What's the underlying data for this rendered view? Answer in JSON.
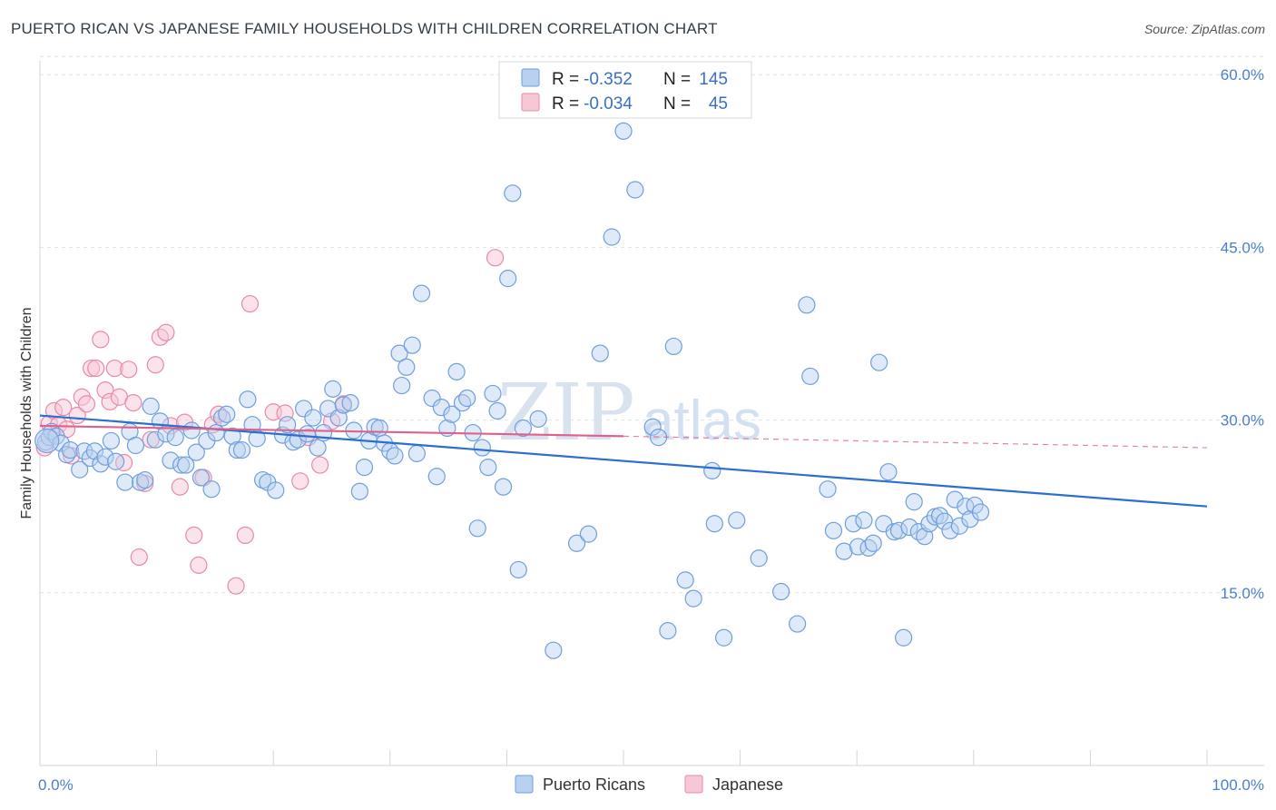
{
  "title": "PUERTO RICAN VS JAPANESE FAMILY HOUSEHOLDS WITH CHILDREN CORRELATION CHART",
  "source": "Source: ZipAtlas.com",
  "watermark": {
    "zip": "ZIP",
    "atlas": "atlas"
  },
  "colors": {
    "blue": "#6f9fdc",
    "blue_fill": "#b9d1f0",
    "blue_line": "#2b6fd1",
    "pink": "#e88aa8",
    "pink_fill": "#f6c8d6",
    "pink_line": "#e0628c"
  },
  "stats": [
    {
      "r_label": "R =",
      "r_value": "-0.352",
      "n_label": "N =",
      "n_value": "145"
    },
    {
      "r_label": "R =",
      "r_value": "-0.034",
      "n_label": "N =",
      "n_value": "45"
    }
  ],
  "legend": [
    {
      "label": "Puerto Ricans"
    },
    {
      "label": "Japanese"
    }
  ],
  "chart_data": {
    "type": "scatter",
    "xlabel": "",
    "ylabel": "Family Households with Children",
    "xlim": [
      0,
      100
    ],
    "ylim": [
      0,
      61.2
    ],
    "x_ticks": [
      {
        "value": 0,
        "label": "0.0%"
      },
      {
        "value": 100,
        "label": "100.0%"
      }
    ],
    "y_ticks": [
      {
        "value": 15,
        "label": "15.0%"
      },
      {
        "value": 30,
        "label": "30.0%"
      },
      {
        "value": 45,
        "label": "45.0%"
      },
      {
        "value": 60,
        "label": "60.0%"
      }
    ],
    "grid": true,
    "series": [
      {
        "name": "Puerto Ricans",
        "trend": {
          "x": [
            0,
            100
          ],
          "y": [
            30.4,
            22.5
          ]
        },
        "points": [
          [
            0.5,
            28.1
          ],
          [
            0.8,
            28.5
          ],
          [
            1.0,
            29.0
          ],
          [
            1.4,
            28.6
          ],
          [
            1.8,
            28.0
          ],
          [
            2.3,
            27.0
          ],
          [
            2.6,
            27.4
          ],
          [
            3.4,
            25.7
          ],
          [
            3.8,
            27.3
          ],
          [
            4.3,
            26.7
          ],
          [
            4.7,
            27.3
          ],
          [
            5.2,
            26.2
          ],
          [
            5.6,
            26.8
          ],
          [
            6.1,
            28.2
          ],
          [
            6.5,
            26.4
          ],
          [
            7.3,
            24.6
          ],
          [
            7.7,
            29.0
          ],
          [
            8.2,
            27.8
          ],
          [
            8.6,
            24.6
          ],
          [
            9.0,
            24.8
          ],
          [
            9.5,
            31.2
          ],
          [
            9.9,
            28.3
          ],
          [
            10.3,
            29.9
          ],
          [
            10.8,
            28.8
          ],
          [
            11.2,
            26.5
          ],
          [
            11.6,
            28.5
          ],
          [
            12.1,
            26.1
          ],
          [
            12.5,
            26.1
          ],
          [
            13.0,
            29.1
          ],
          [
            13.4,
            27.2
          ],
          [
            13.8,
            25.0
          ],
          [
            14.3,
            28.2
          ],
          [
            14.7,
            24.0
          ],
          [
            15.1,
            28.9
          ],
          [
            15.6,
            30.2
          ],
          [
            16.0,
            30.5
          ],
          [
            16.5,
            28.6
          ],
          [
            16.9,
            27.4
          ],
          [
            17.3,
            27.4
          ],
          [
            17.8,
            31.8
          ],
          [
            18.2,
            29.6
          ],
          [
            18.6,
            28.4
          ],
          [
            19.1,
            24.8
          ],
          [
            19.5,
            24.6
          ],
          [
            20.2,
            23.9
          ],
          [
            20.8,
            28.7
          ],
          [
            21.2,
            29.6
          ],
          [
            21.7,
            28.1
          ],
          [
            22.1,
            28.3
          ],
          [
            22.6,
            31.0
          ],
          [
            22.9,
            28.8
          ],
          [
            23.4,
            30.2
          ],
          [
            23.8,
            27.6
          ],
          [
            24.3,
            28.9
          ],
          [
            24.7,
            31.0
          ],
          [
            25.1,
            32.7
          ],
          [
            25.6,
            30.2
          ],
          [
            26.0,
            31.3
          ],
          [
            26.6,
            31.5
          ],
          [
            26.9,
            29.1
          ],
          [
            27.4,
            23.8
          ],
          [
            27.8,
            25.9
          ],
          [
            28.2,
            28.2
          ],
          [
            28.7,
            29.4
          ],
          [
            29.1,
            29.3
          ],
          [
            29.5,
            28.0
          ],
          [
            30.0,
            27.3
          ],
          [
            30.4,
            26.9
          ],
          [
            30.8,
            35.8
          ],
          [
            31.0,
            33.0
          ],
          [
            31.4,
            34.6
          ],
          [
            31.9,
            36.5
          ],
          [
            32.3,
            27.1
          ],
          [
            32.7,
            41.0
          ],
          [
            33.6,
            31.9
          ],
          [
            34.0,
            25.1
          ],
          [
            34.4,
            31.1
          ],
          [
            34.9,
            29.3
          ],
          [
            35.3,
            30.5
          ],
          [
            35.7,
            34.2
          ],
          [
            36.2,
            31.5
          ],
          [
            36.6,
            31.9
          ],
          [
            37.1,
            28.9
          ],
          [
            37.5,
            20.6
          ],
          [
            37.9,
            27.6
          ],
          [
            38.4,
            25.9
          ],
          [
            38.8,
            32.3
          ],
          [
            39.2,
            30.8
          ],
          [
            39.7,
            24.2
          ],
          [
            40.1,
            42.3
          ],
          [
            40.5,
            49.7
          ],
          [
            41.0,
            17.0
          ],
          [
            41.4,
            29.3
          ],
          [
            42.7,
            30.1
          ],
          [
            44.0,
            10.0
          ],
          [
            46.0,
            19.3
          ],
          [
            47.0,
            20.1
          ],
          [
            48.0,
            35.8
          ],
          [
            49.0,
            45.9
          ],
          [
            50.0,
            55.1
          ],
          [
            51.0,
            50.0
          ],
          [
            52.5,
            29.4
          ],
          [
            53.0,
            28.5
          ],
          [
            53.8,
            11.7
          ],
          [
            54.3,
            36.4
          ],
          [
            55.3,
            16.1
          ],
          [
            56.0,
            14.5
          ],
          [
            57.6,
            25.6
          ],
          [
            57.8,
            21.0
          ],
          [
            58.6,
            11.1
          ],
          [
            59.7,
            21.3
          ],
          [
            61.6,
            18.0
          ],
          [
            63.5,
            15.1
          ],
          [
            64.9,
            12.3
          ],
          [
            65.7,
            40.0
          ],
          [
            66.0,
            33.8
          ],
          [
            67.5,
            24.0
          ],
          [
            68.0,
            20.4
          ],
          [
            68.9,
            18.6
          ],
          [
            69.7,
            21.0
          ],
          [
            70.1,
            19.0
          ],
          [
            70.6,
            21.3
          ],
          [
            71.0,
            18.9
          ],
          [
            71.4,
            19.3
          ],
          [
            71.9,
            35.0
          ],
          [
            72.3,
            21.0
          ],
          [
            72.7,
            25.5
          ],
          [
            73.2,
            20.3
          ],
          [
            73.6,
            20.4
          ],
          [
            74.0,
            11.1
          ],
          [
            74.5,
            20.7
          ],
          [
            74.9,
            22.9
          ],
          [
            75.3,
            20.3
          ],
          [
            75.8,
            19.9
          ],
          [
            76.2,
            21.0
          ],
          [
            76.7,
            21.6
          ],
          [
            77.1,
            21.7
          ],
          [
            77.5,
            21.2
          ],
          [
            78.0,
            20.4
          ],
          [
            78.4,
            23.1
          ],
          [
            78.8,
            20.8
          ],
          [
            79.3,
            22.5
          ],
          [
            79.7,
            21.4
          ],
          [
            80.1,
            22.6
          ],
          [
            80.6,
            22.0
          ]
        ]
      },
      {
        "name": "Japanese",
        "trend": {
          "x": [
            0,
            50
          ],
          "y": [
            29.5,
            28.6
          ]
        },
        "dashed_extension": {
          "x": [
            50,
            100
          ],
          "y": [
            28.6,
            27.6
          ]
        },
        "points": [
          [
            0.4,
            27.6
          ],
          [
            0.8,
            29.7
          ],
          [
            1.2,
            30.8
          ],
          [
            1.6,
            29.6
          ],
          [
            2.0,
            31.1
          ],
          [
            2.3,
            29.2
          ],
          [
            2.7,
            26.9
          ],
          [
            3.2,
            30.4
          ],
          [
            3.6,
            32.0
          ],
          [
            4.0,
            31.4
          ],
          [
            4.4,
            34.5
          ],
          [
            4.8,
            34.5
          ],
          [
            5.2,
            37.0
          ],
          [
            5.6,
            32.6
          ],
          [
            6.0,
            31.6
          ],
          [
            6.4,
            34.5
          ],
          [
            6.8,
            32.0
          ],
          [
            7.2,
            26.3
          ],
          [
            7.6,
            34.4
          ],
          [
            8.0,
            31.5
          ],
          [
            8.5,
            18.1
          ],
          [
            9.0,
            24.5
          ],
          [
            9.5,
            28.3
          ],
          [
            9.9,
            34.8
          ],
          [
            10.3,
            37.2
          ],
          [
            10.8,
            37.6
          ],
          [
            11.2,
            29.5
          ],
          [
            12.0,
            24.2
          ],
          [
            12.4,
            29.8
          ],
          [
            13.2,
            20.0
          ],
          [
            13.6,
            17.4
          ],
          [
            14.0,
            25.0
          ],
          [
            14.8,
            29.6
          ],
          [
            15.3,
            30.5
          ],
          [
            16.8,
            15.6
          ],
          [
            17.6,
            20.0
          ],
          [
            18.0,
            40.1
          ],
          [
            20.0,
            30.7
          ],
          [
            21.0,
            30.6
          ],
          [
            22.3,
            24.7
          ],
          [
            23.0,
            28.5
          ],
          [
            24.0,
            26.1
          ],
          [
            25.0,
            29.9
          ],
          [
            26.0,
            31.4
          ],
          [
            39.0,
            44.1
          ]
        ]
      }
    ]
  }
}
